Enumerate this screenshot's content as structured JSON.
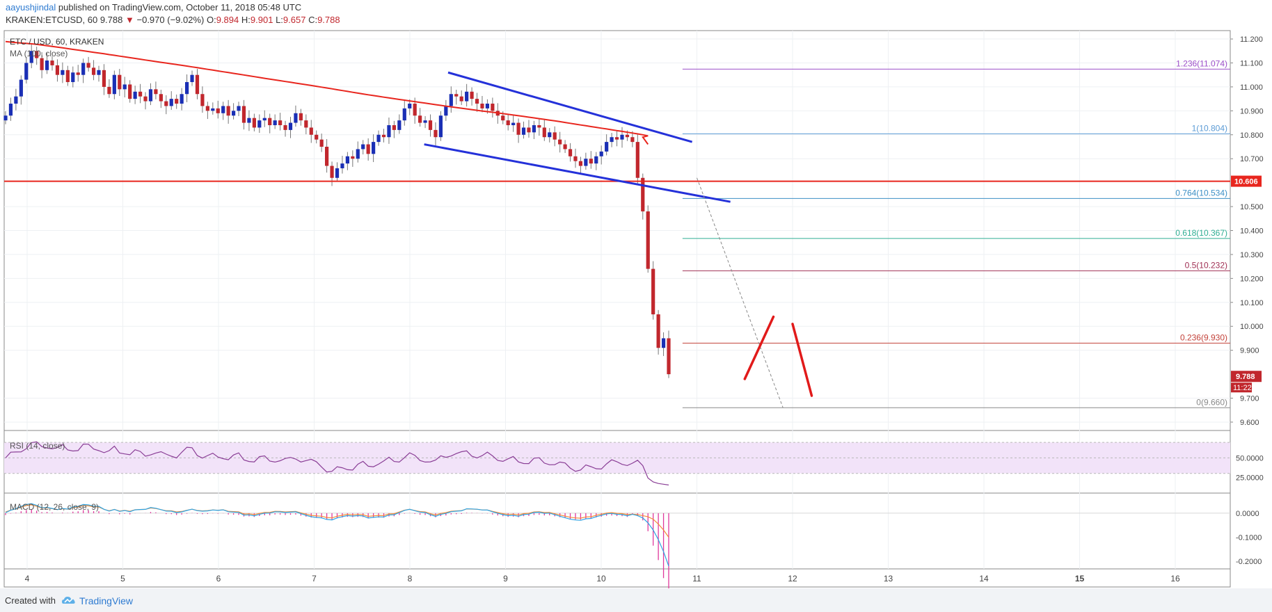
{
  "header": {
    "author": "aayushjindal",
    "published": "published on TradingView.com, October 11, 2018 05:48 UTC",
    "symbol": "KRAKEN:ETCUSD, 60",
    "last": "9.788",
    "arrow": "▼",
    "change": "−0.970 (−9.02%)",
    "ohlc_o_label": "O:",
    "ohlc_o": "9.894",
    "ohlc_h_label": "H:",
    "ohlc_h": "9.901",
    "ohlc_l_label": "L:",
    "ohlc_l": "9.657",
    "ohlc_c_label": "C:",
    "ohlc_c": "9.788"
  },
  "footer": {
    "created": "Created with",
    "brand": "TradingView"
  },
  "colors": {
    "up": "#1a2fb5",
    "down": "#c1272d",
    "ma": "#e8261e",
    "channel": "#2431d9",
    "support": "#e8261e",
    "rsi_line": "#8a3e96",
    "rsi_band": "#f2e3f9",
    "macd": "#2da3e3",
    "signal": "#f28c38",
    "hist": "#e0389c",
    "fib_1236": "#9c4fc9",
    "fib_1": "#5b9bd5",
    "fib_764": "#3c8fc5",
    "fib_618": "#2fae93",
    "fib_5": "#a03054",
    "fib_236": "#c3423a",
    "fib_0": "#888888"
  },
  "chart_data": {
    "type": "candlestick",
    "title": "ETC / USD, 60, KRAKEN",
    "x_ticks": [
      "4",
      "5",
      "6",
      "7",
      "8",
      "9",
      "10",
      "11",
      "12",
      "13",
      "14",
      "15",
      "16"
    ],
    "x_tick_bold": [
      "15"
    ],
    "ylim": [
      9.565,
      11.235
    ],
    "y_ticks": [
      "11.200",
      "11.100",
      "11.000",
      "10.900",
      "10.800",
      "10.700",
      "10.500",
      "10.400",
      "10.300",
      "10.200",
      "10.100",
      "10.000",
      "9.900",
      "9.700",
      "9.600"
    ],
    "price_tag": {
      "value": 9.788,
      "label": "9.788",
      "timer": "11:22"
    },
    "support": {
      "value": 10.606,
      "label": "10.606"
    },
    "ma": {
      "label": "MA (100, close)"
    },
    "fib_levels": [
      {
        "label": "1.236(11.074)",
        "value": 11.074,
        "key": "fib_1236"
      },
      {
        "label": "1(10.804)",
        "value": 10.804,
        "key": "fib_1"
      },
      {
        "label": "0.764(10.534)",
        "value": 10.534,
        "key": "fib_764"
      },
      {
        "label": "0.618(10.367)",
        "value": 10.367,
        "key": "fib_618"
      },
      {
        "label": "0.5(10.232)",
        "value": 10.232,
        "key": "fib_5"
      },
      {
        "label": "0.236(9.930)",
        "value": 9.93,
        "key": "fib_236"
      },
      {
        "label": "0(9.660)",
        "value": 9.66,
        "key": "fib_0"
      }
    ],
    "channel": {
      "upper": [
        [
          8.4,
          11.06
        ],
        [
          10.95,
          10.77
        ]
      ],
      "lower": [
        [
          8.15,
          10.76
        ],
        [
          11.35,
          10.52
        ]
      ]
    },
    "projection": [
      [
        11.0,
        10.62
      ],
      [
        11.9,
        9.66
      ]
    ],
    "forecast": [
      [
        [
          11.5,
          9.78
        ],
        [
          11.8,
          10.04
        ]
      ],
      [
        [
          12.0,
          10.01
        ],
        [
          12.2,
          9.71
        ]
      ]
    ],
    "rsi": {
      "label": "RSI (14, close)",
      "y_ticks": [
        "50.0000",
        "25.0000"
      ],
      "band": [
        30,
        70
      ]
    },
    "macd": {
      "label": "MACD (12, 26, close, 9)",
      "y_ticks": [
        "0.0000",
        "-0.1000",
        "-0.2000"
      ]
    }
  }
}
